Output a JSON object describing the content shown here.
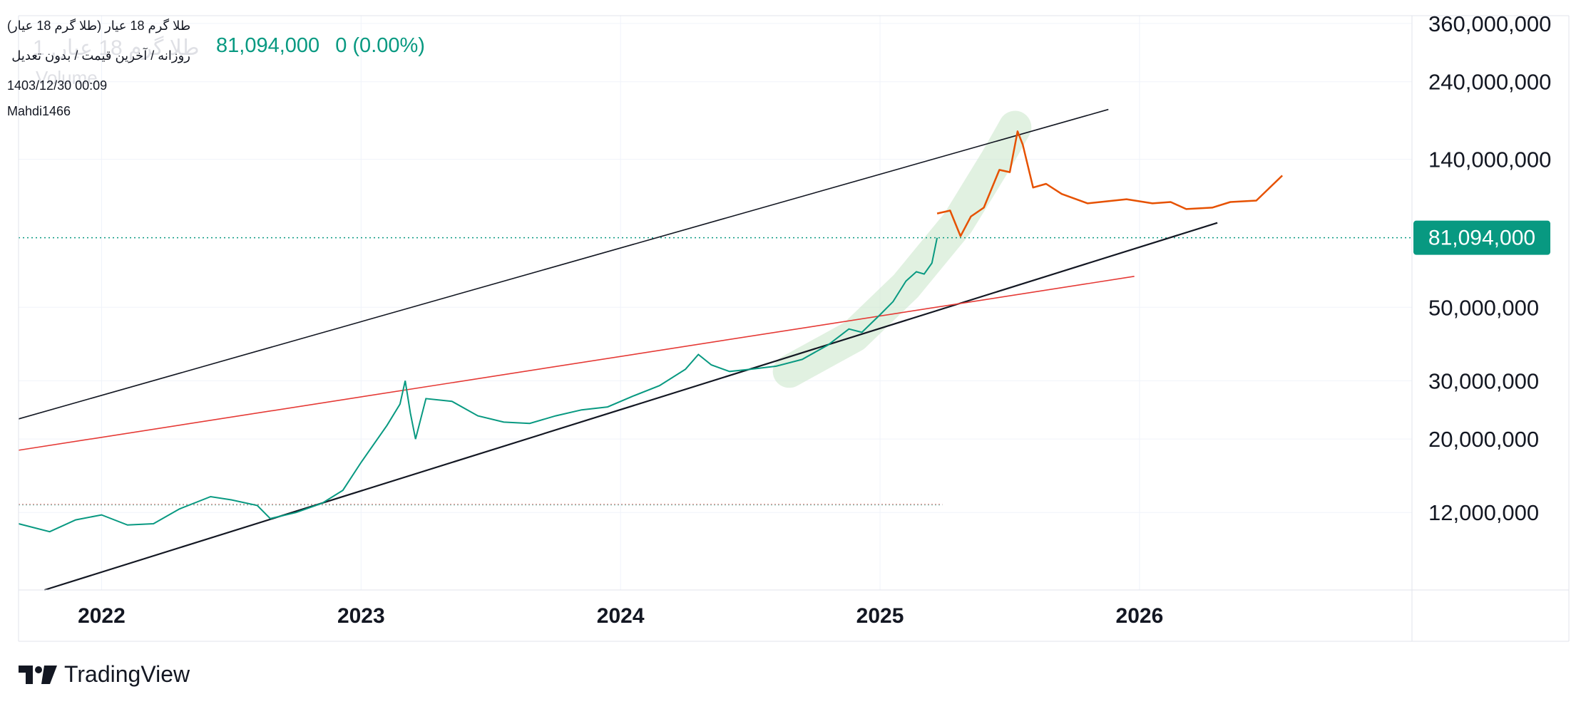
{
  "header": {
    "title": "طلا گرم 18 عیار (طلا گرم 18 عیار)",
    "watermark": "طلا گرم 18 عیار, 1",
    "watermark_sub": "Volume",
    "subtitle": "روزانه / آخرین قیمت / بدون تعدیل",
    "datetime": "1403/12/30 00:09",
    "author": "Mahdi1466",
    "last_price": "81,094,000",
    "change": "0 (0.00%)"
  },
  "brand": {
    "name": "TradingView",
    "accent": "#089981",
    "badge_color": "#089981",
    "channel_color": "#131722",
    "resistance_color": "#e53935",
    "forecast_color": "#e65100",
    "highlight_color": "#c8e6c9"
  },
  "chart_data": {
    "type": "line",
    "title": "طلا گرم 18 عیار (طلا گرم 18 عیار)",
    "scale": "log",
    "xlabel": "",
    "ylabel": "",
    "x_ticks": [
      "2022",
      "2023",
      "2024",
      "2025",
      "2026"
    ],
    "x_tick_years": [
      2022.0,
      2023.0,
      2024.0,
      2025.0,
      2026.0
    ],
    "xlim": [
      2021.68,
      2027.05
    ],
    "ylim": [
      7000000,
      380000000
    ],
    "y_ticks": [
      12000000,
      20000000,
      30000000,
      50000000,
      140000000,
      240000000,
      360000000
    ],
    "y_tick_labels": [
      "12,000,000",
      "20,000,000",
      "30,000,000",
      "50,000,000",
      "140,000,000",
      "240,000,000",
      "360,000,000"
    ],
    "last_price": 81094000,
    "last_price_label": "81,094,000",
    "series": [
      {
        "name": "price",
        "kind": "candles-approx",
        "points": [
          [
            2021.68,
            11100000
          ],
          [
            2021.8,
            10500000
          ],
          [
            2021.9,
            11400000
          ],
          [
            2022.0,
            11800000
          ],
          [
            2022.1,
            11000000
          ],
          [
            2022.2,
            11100000
          ],
          [
            2022.3,
            12300000
          ],
          [
            2022.42,
            13400000
          ],
          [
            2022.5,
            13100000
          ],
          [
            2022.6,
            12600000
          ],
          [
            2022.65,
            11500000
          ],
          [
            2022.75,
            12000000
          ],
          [
            2022.85,
            12800000
          ],
          [
            2022.93,
            14000000
          ],
          [
            2023.0,
            17000000
          ],
          [
            2023.1,
            22000000
          ],
          [
            2023.15,
            25500000
          ],
          [
            2023.17,
            30000000
          ],
          [
            2023.19,
            24000000
          ],
          [
            2023.21,
            20000000
          ],
          [
            2023.25,
            26500000
          ],
          [
            2023.35,
            26000000
          ],
          [
            2023.45,
            23500000
          ],
          [
            2023.55,
            22500000
          ],
          [
            2023.65,
            22300000
          ],
          [
            2023.75,
            23500000
          ],
          [
            2023.85,
            24500000
          ],
          [
            2023.95,
            25000000
          ],
          [
            2024.05,
            27000000
          ],
          [
            2024.15,
            29000000
          ],
          [
            2024.25,
            32500000
          ],
          [
            2024.3,
            36000000
          ],
          [
            2024.35,
            33500000
          ],
          [
            2024.42,
            32000000
          ],
          [
            2024.5,
            32500000
          ],
          [
            2024.6,
            33200000
          ],
          [
            2024.7,
            34800000
          ],
          [
            2024.8,
            38500000
          ],
          [
            2024.88,
            43000000
          ],
          [
            2024.93,
            42000000
          ],
          [
            2025.0,
            47500000
          ],
          [
            2025.05,
            52000000
          ],
          [
            2025.1,
            60000000
          ],
          [
            2025.14,
            64000000
          ],
          [
            2025.17,
            63000000
          ],
          [
            2025.2,
            68000000
          ],
          [
            2025.22,
            81094000
          ]
        ]
      },
      {
        "name": "forecast",
        "points": [
          [
            2025.22,
            96000000
          ],
          [
            2025.27,
            98000000
          ],
          [
            2025.31,
            82000000
          ],
          [
            2025.35,
            94000000
          ],
          [
            2025.4,
            100000000
          ],
          [
            2025.46,
            130000000
          ],
          [
            2025.5,
            128000000
          ],
          [
            2025.53,
            170000000
          ],
          [
            2025.55,
            155000000
          ],
          [
            2025.59,
            115000000
          ],
          [
            2025.64,
            118000000
          ],
          [
            2025.7,
            110000000
          ],
          [
            2025.8,
            103000000
          ],
          [
            2025.95,
            106000000
          ],
          [
            2026.05,
            103000000
          ],
          [
            2026.12,
            104000000
          ],
          [
            2026.18,
            99000000
          ],
          [
            2026.28,
            100000000
          ],
          [
            2026.35,
            104000000
          ],
          [
            2026.45,
            105000000
          ],
          [
            2026.55,
            125000000
          ]
        ]
      }
    ],
    "trend_lines": [
      {
        "name": "upper-channel",
        "from": [
          2021.68,
          23000000
        ],
        "to": [
          2025.88,
          198000000
        ]
      },
      {
        "name": "lower-channel",
        "from": [
          2021.78,
          7000000
        ],
        "to": [
          2026.3,
          90000000
        ]
      },
      {
        "name": "resistance",
        "from": [
          2021.68,
          18500000
        ],
        "to": [
          2025.98,
          62000000
        ]
      }
    ],
    "horizontal_lines": [
      {
        "name": "last-price-line",
        "value": 81094000
      },
      {
        "name": "support-level",
        "value": 12700000,
        "from": 2021.68,
        "to": 2025.24
      }
    ],
    "highlight_band": {
      "name": "trend-highlight",
      "points": [
        [
          2024.65,
          32000000
        ],
        [
          2024.9,
          41000000
        ],
        [
          2025.1,
          58000000
        ],
        [
          2025.3,
          90000000
        ],
        [
          2025.45,
          140000000
        ],
        [
          2025.52,
          175000000
        ]
      ]
    }
  }
}
